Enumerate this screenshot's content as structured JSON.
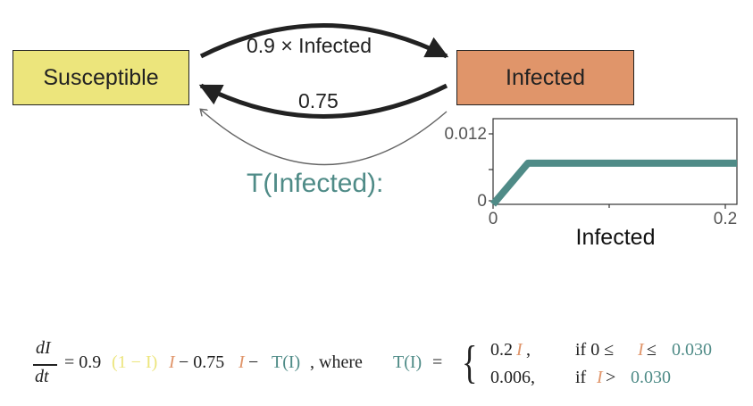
{
  "colors": {
    "susceptible": "#ece57c",
    "infected": "#e0956a",
    "treatment": "#4f8b87",
    "arrow": "#222222",
    "thin_arrow": "#666666"
  },
  "compartments": {
    "susceptible": "Susceptible",
    "infected": "Infected"
  },
  "flows": {
    "infection": "0.9 × Infected",
    "recovery": "0.75",
    "treatment": "T(Infected):"
  },
  "chart_data": {
    "type": "line",
    "xlabel": "Infected",
    "ylabel": "",
    "xlim": [
      0,
      0.21
    ],
    "ylim": [
      0,
      0.012
    ],
    "x_ticks": [
      0,
      0.2
    ],
    "x_tick_labels": [
      "0",
      "0.2"
    ],
    "y_ticks": [
      0,
      0.012
    ],
    "y_tick_labels": [
      "0",
      "0.012"
    ],
    "series": [
      {
        "x": [
          0,
          0.03,
          0.21
        ],
        "y": [
          0,
          0.006,
          0.006
        ],
        "color": "#4f8b87"
      }
    ],
    "grid": false
  },
  "equation": {
    "dI": "dI",
    "dt": "dt",
    "eq_a": "= 0.9",
    "eq_b": "(1 − I)",
    "eq_c": "I",
    "eq_d": " − 0.75",
    "eq_e": "I",
    "eq_f": " − ",
    "eq_g": "T(I)",
    "eq_h": ",  where ",
    "eq_i": "T(I)",
    "eq_j": " =",
    "case1_a": "0.2",
    "case1_b": "I",
    "case1_c": ",",
    "case1_cond_a": "if 0 ≤ ",
    "case1_cond_b": "I",
    "case1_cond_c": " ≤ ",
    "case1_cond_d": "0.030",
    "case2_a": "0.006,",
    "case2_cond_a": "if ",
    "case2_cond_b": "I",
    "case2_cond_c": " > ",
    "case2_cond_d": "0.030"
  }
}
